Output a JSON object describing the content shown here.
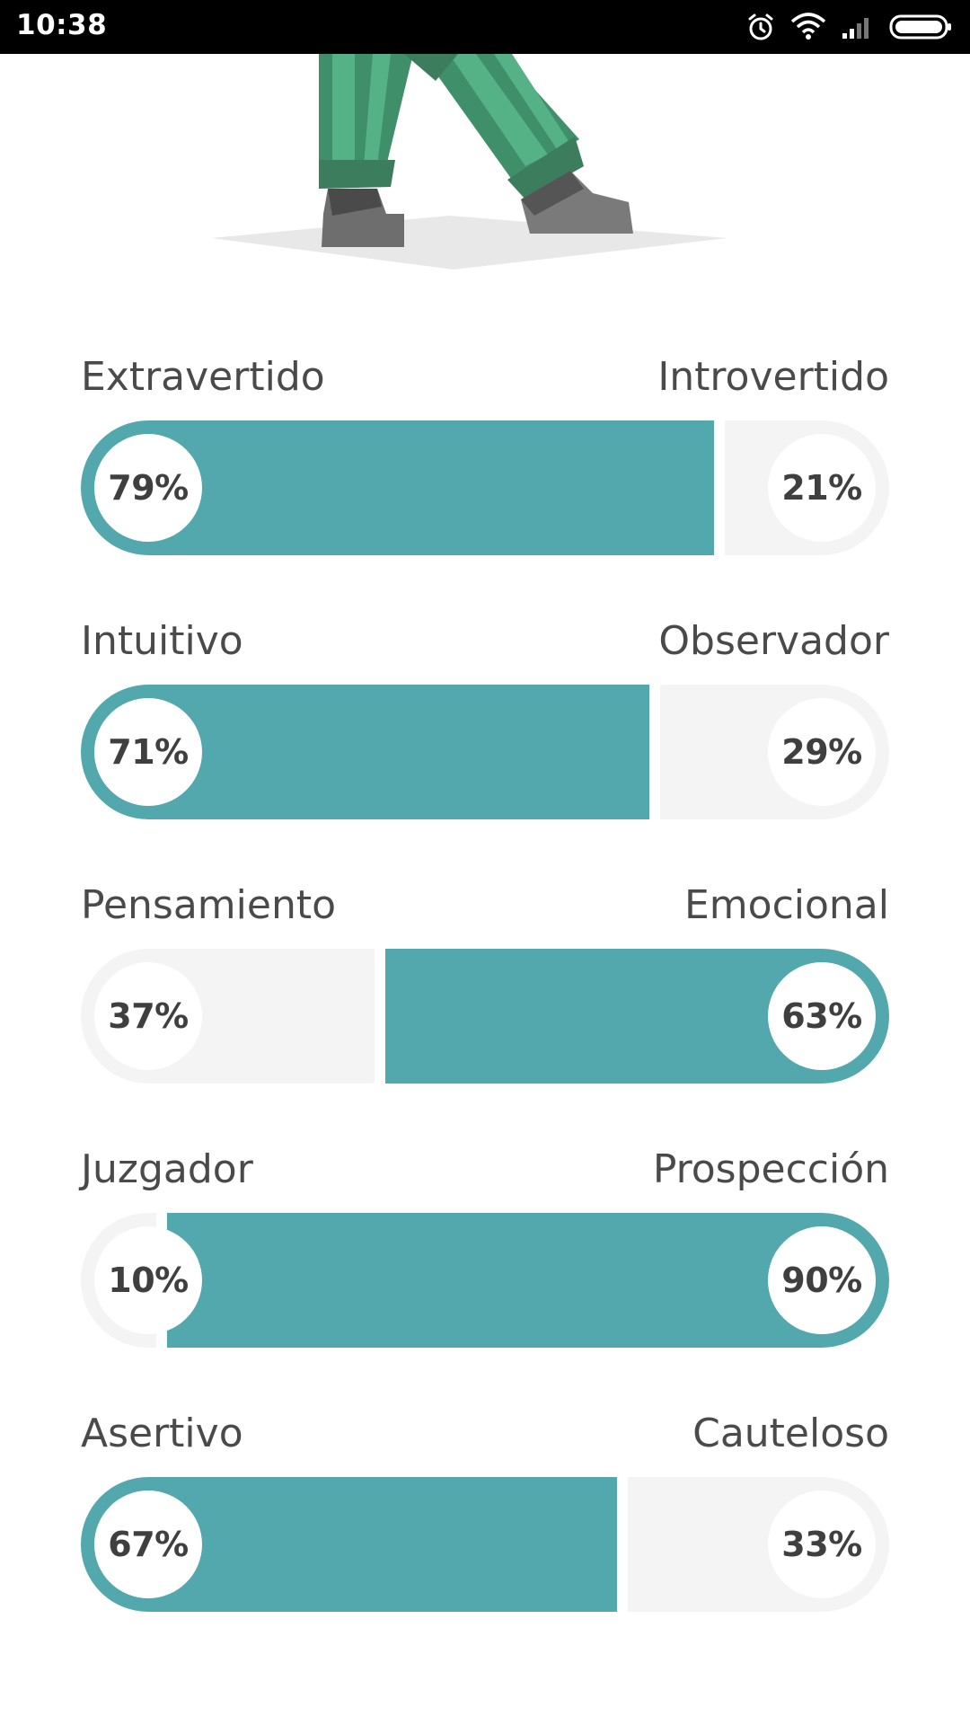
{
  "status_bar": {
    "time": "10:38",
    "icons": [
      "alarm-icon",
      "wifi-icon",
      "signal-icon",
      "battery-icon"
    ]
  },
  "colors": {
    "accent": "#52a8ad",
    "inactive": "#f4f4f4",
    "label_text": "#4a4a4a",
    "percent_text": "#3f3f3f"
  },
  "traits": [
    {
      "left_label": "Extravertido",
      "right_label": "Introvertido",
      "left_percent": "79%",
      "right_percent": "21%",
      "left_value": 79,
      "dominant": "left"
    },
    {
      "left_label": "Intuitivo",
      "right_label": "Observador",
      "left_percent": "71%",
      "right_percent": "29%",
      "left_value": 71,
      "dominant": "left"
    },
    {
      "left_label": "Pensamiento",
      "right_label": "Emocional",
      "left_percent": "37%",
      "right_percent": "63%",
      "left_value": 37,
      "dominant": "right"
    },
    {
      "left_label": "Juzgador",
      "right_label": "Prospección",
      "left_percent": "10%",
      "right_percent": "90%",
      "left_value": 10,
      "dominant": "right"
    },
    {
      "left_label": "Asertivo",
      "right_label": "Cauteloso",
      "left_percent": "67%",
      "right_percent": "33%",
      "left_value": 67,
      "dominant": "left"
    }
  ]
}
